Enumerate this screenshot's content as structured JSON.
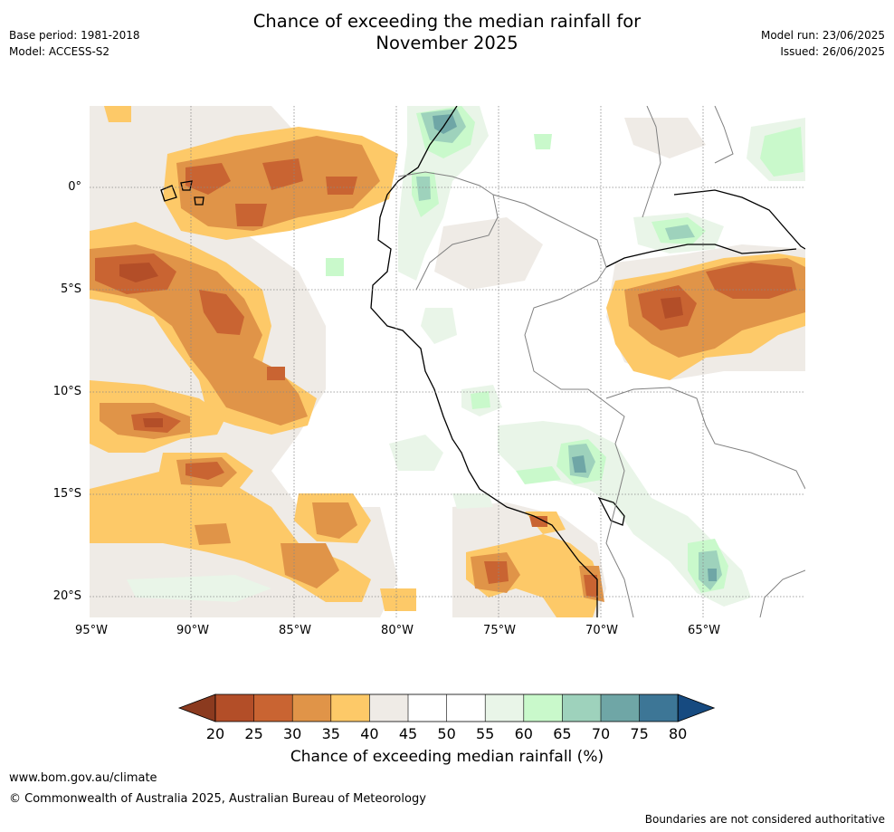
{
  "header": {
    "title_line1": "Chance of exceeding the median rainfall for",
    "title_line2": "November 2025",
    "base_period": "Base period: 1981-2018",
    "model": "Model: ACCESS-S2",
    "model_run": "Model run: 23/06/2025",
    "issued": "Issued: 26/06/2025"
  },
  "map": {
    "lon_range": [
      -95,
      -60
    ],
    "lat_range": [
      -21,
      4
    ],
    "lat_labels": [
      "0°",
      "5°S",
      "10°S",
      "15°S",
      "20°S"
    ],
    "lon_labels": [
      "95°W",
      "90°W",
      "85°W",
      "80°W",
      "75°W",
      "70°W",
      "65°W"
    ],
    "gridlines": "dotted"
  },
  "legend": {
    "label": "Chance of exceeding median rainfall (%)",
    "ticks": [
      "20",
      "25",
      "30",
      "35",
      "40",
      "45",
      "50",
      "55",
      "60",
      "65",
      "70",
      "75",
      "80"
    ],
    "colors": [
      "#8b3a1f",
      "#b34e28",
      "#c96432",
      "#e09448",
      "#fdc968",
      "#efebe6",
      "#ffffff",
      "#ffffff",
      "#e9f5e8",
      "#c9f9cb",
      "#9ed2bc",
      "#6fa6a6",
      "#3d7696",
      "#164a80"
    ]
  },
  "footer": {
    "url": "www.bom.gov.au/climate",
    "copyright": "© Commonwealth of Australia 2025, Australian Bureau of Meteorology",
    "note": "Boundaries are not considered authoritative"
  }
}
